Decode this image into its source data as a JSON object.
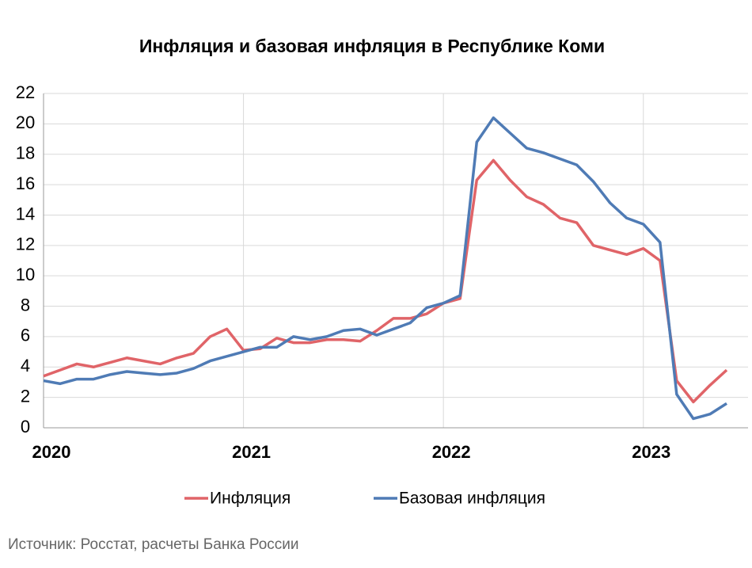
{
  "chart_data": {
    "type": "line",
    "title": "Инфляция и базовая инфляция в Республике Коми",
    "source": "Источник: Росстат, расчеты Банка России",
    "categories": [
      "2020",
      null,
      null,
      null,
      null,
      null,
      null,
      null,
      null,
      null,
      null,
      null,
      "2021",
      null,
      null,
      null,
      null,
      null,
      null,
      null,
      null,
      null,
      null,
      null,
      "2022",
      null,
      null,
      null,
      null,
      null,
      null,
      null,
      null,
      null,
      null,
      null,
      "2023",
      null,
      null,
      null,
      null,
      null
    ],
    "series": [
      {
        "name": "Инфляция",
        "color": "#e06468",
        "values": [
          3.4,
          3.8,
          4.2,
          4.0,
          4.3,
          4.6,
          4.4,
          4.2,
          4.6,
          4.9,
          6.0,
          6.5,
          5.1,
          5.2,
          5.9,
          5.6,
          5.6,
          5.8,
          5.8,
          5.7,
          6.4,
          7.2,
          7.2,
          7.5,
          8.2,
          8.5,
          16.3,
          17.6,
          16.3,
          15.2,
          14.7,
          13.8,
          13.5,
          12.0,
          11.7,
          11.4,
          11.8,
          11.0,
          3.1,
          1.7,
          2.8,
          3.8
        ]
      },
      {
        "name": "Базовая инфляция",
        "color": "#4f7bb5",
        "values": [
          3.1,
          2.9,
          3.2,
          3.2,
          3.5,
          3.7,
          3.6,
          3.5,
          3.6,
          3.9,
          4.4,
          4.7,
          5.0,
          5.3,
          5.3,
          6.0,
          5.8,
          6.0,
          6.4,
          6.5,
          6.1,
          6.5,
          6.9,
          7.9,
          8.2,
          8.7,
          18.8,
          20.4,
          19.4,
          18.4,
          18.1,
          17.7,
          17.3,
          16.2,
          14.8,
          13.8,
          13.4,
          12.2,
          2.2,
          0.6,
          0.9,
          1.6
        ]
      }
    ],
    "ylim": [
      0,
      22
    ],
    "yticks": [
      0,
      2,
      4,
      6,
      8,
      10,
      12,
      14,
      16,
      18,
      20,
      22
    ],
    "grid": true
  }
}
